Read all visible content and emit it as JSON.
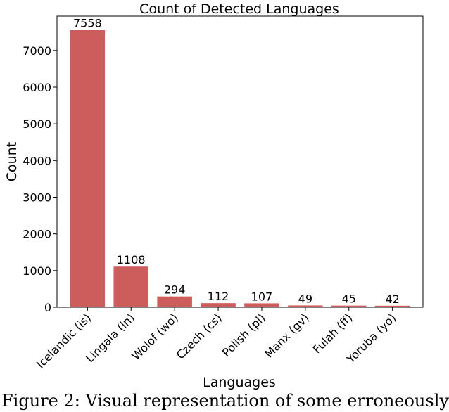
{
  "chart_data": {
    "type": "bar",
    "title": "Count of Detected Languages",
    "xlabel": "Languages",
    "ylabel": "Count",
    "categories": [
      "Icelandic (is)",
      "Lingala (ln)",
      "Wolof (wo)",
      "Czech (cs)",
      "Polish (pl)",
      "Manx (gv)",
      "Fulah (ff)",
      "Yoruba (yo)"
    ],
    "values": [
      7558,
      1108,
      294,
      112,
      107,
      49,
      45,
      42
    ],
    "ylim": [
      0,
      7936
    ],
    "yticks": [
      0,
      1000,
      2000,
      3000,
      4000,
      5000,
      6000,
      7000
    ],
    "grid": false,
    "bar_color": "#cd5c5c",
    "data_labels": true
  },
  "caption": "Figure 2: Visual representation of some erroneously"
}
